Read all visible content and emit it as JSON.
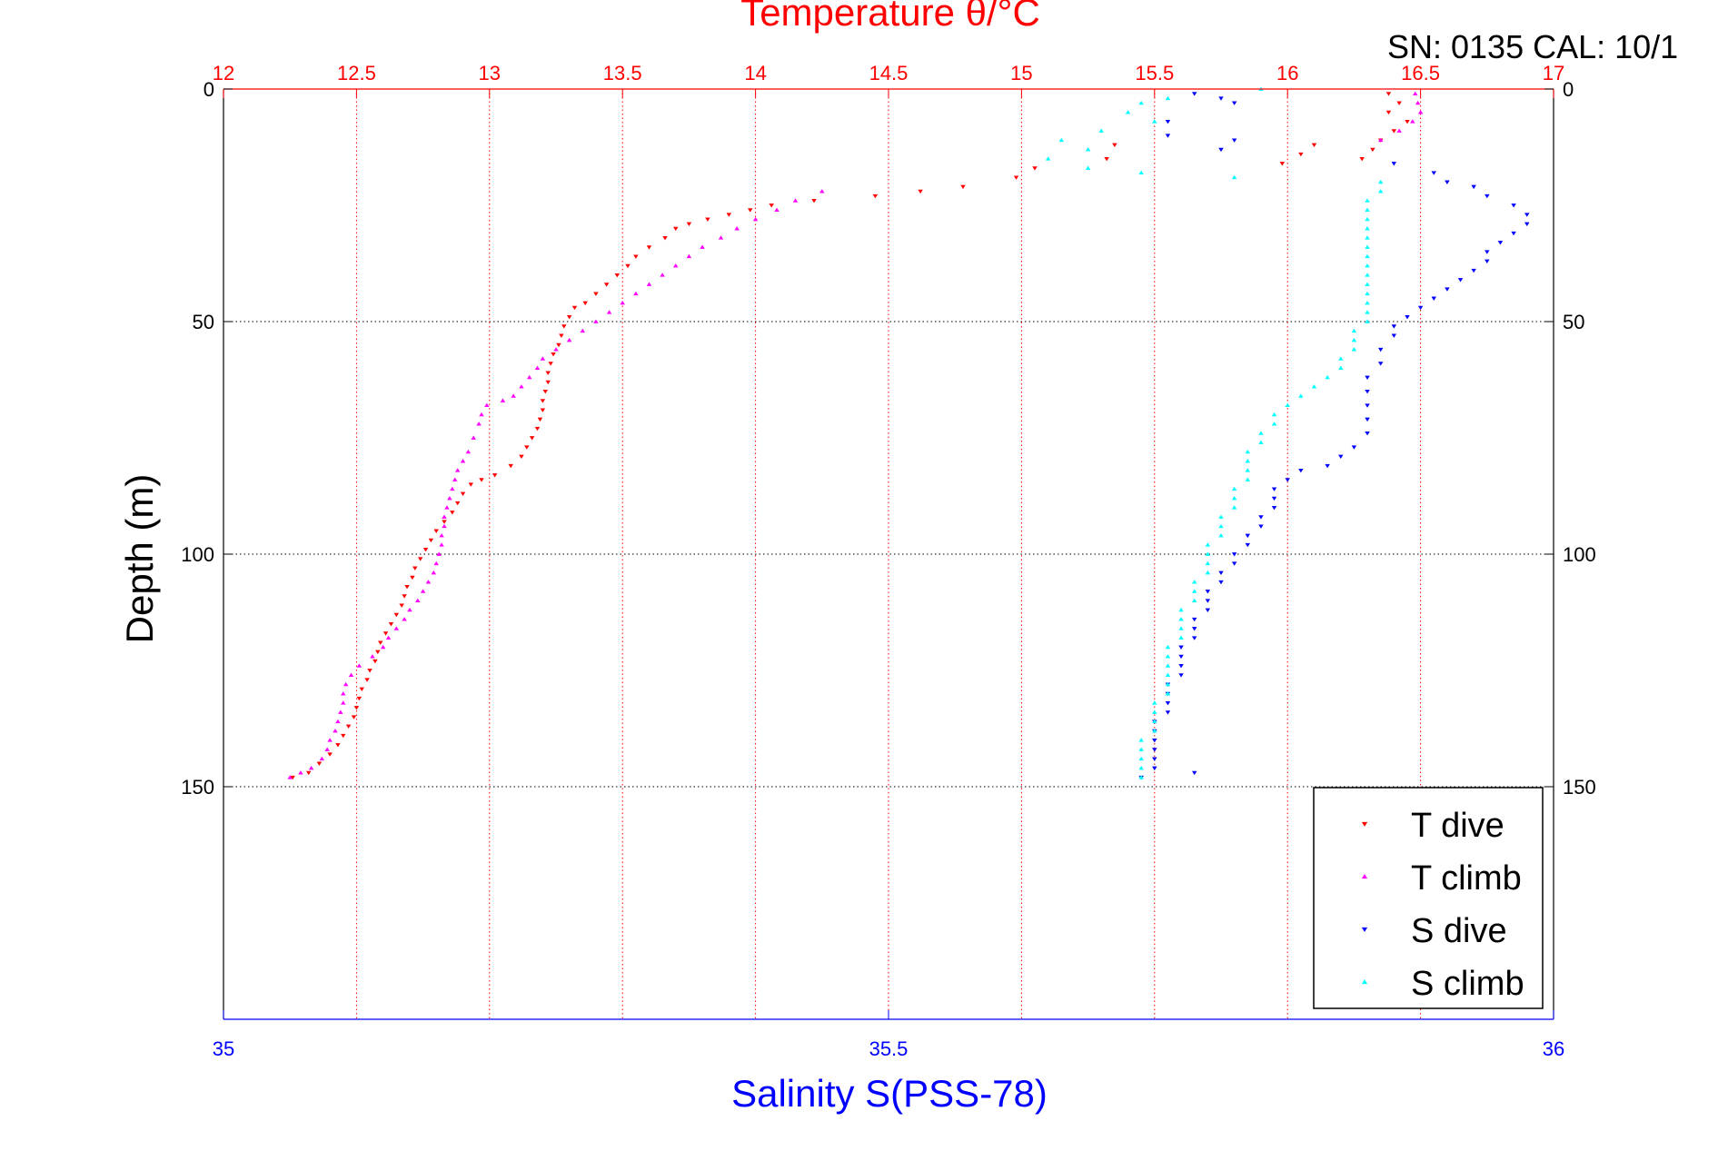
{
  "chart_data": {
    "type": "scatter",
    "title": "Temperature θ/°C",
    "serial_label": "SN: 0135  CAL: 10/1",
    "ylabel": "Depth (m)",
    "xlabel_bottom": "Salinity S(PSS-78)",
    "temperature_axis": {
      "range": [
        12,
        17
      ],
      "ticks": [
        12,
        12.5,
        13,
        13.5,
        14,
        14.5,
        15,
        15.5,
        16,
        16.5,
        17
      ],
      "tick_labels": [
        "12",
        "12.5",
        "13",
        "13.5",
        "14",
        "14.5",
        "15",
        "15.5",
        "16",
        "16.5",
        "17"
      ],
      "color": "#ff0000"
    },
    "salinity_axis": {
      "range": [
        35,
        36
      ],
      "ticks": [
        35,
        35.5,
        36
      ],
      "tick_labels": [
        "35",
        "35.5",
        "36"
      ],
      "color": "#0000ff"
    },
    "depth_axis": {
      "range": [
        0,
        200
      ],
      "reversed": true,
      "ticks": [
        0,
        50,
        100,
        150
      ],
      "tick_labels": [
        "0",
        "50",
        "100",
        "150"
      ]
    },
    "grid": true,
    "legend_position": "bottom-right",
    "series": [
      {
        "name": "T dive",
        "axis": "temperature",
        "marker": "triangle-down",
        "color": "#ff0000",
        "points": [
          [
            16.38,
            1
          ],
          [
            16.42,
            3
          ],
          [
            16.38,
            5
          ],
          [
            16.45,
            7
          ],
          [
            16.4,
            9
          ],
          [
            16.35,
            11
          ],
          [
            16.32,
            13
          ],
          [
            16.28,
            15
          ],
          [
            16.1,
            12
          ],
          [
            16.05,
            14
          ],
          [
            15.98,
            16
          ],
          [
            15.35,
            12
          ],
          [
            15.32,
            15
          ],
          [
            15.05,
            17
          ],
          [
            14.98,
            19
          ],
          [
            14.78,
            21
          ],
          [
            14.62,
            22
          ],
          [
            14.45,
            23
          ],
          [
            14.22,
            24
          ],
          [
            14.06,
            25
          ],
          [
            13.98,
            26
          ],
          [
            13.9,
            27
          ],
          [
            13.82,
            28
          ],
          [
            13.75,
            29
          ],
          [
            13.7,
            30
          ],
          [
            13.66,
            32
          ],
          [
            13.6,
            34
          ],
          [
            13.55,
            36
          ],
          [
            13.52,
            38
          ],
          [
            13.48,
            40
          ],
          [
            13.44,
            42
          ],
          [
            13.4,
            44
          ],
          [
            13.36,
            46
          ],
          [
            13.32,
            47
          ],
          [
            13.3,
            49
          ],
          [
            13.28,
            51
          ],
          [
            13.27,
            53
          ],
          [
            13.26,
            55
          ],
          [
            13.24,
            57
          ],
          [
            13.23,
            59
          ],
          [
            13.22,
            61
          ],
          [
            13.22,
            63
          ],
          [
            13.21,
            65
          ],
          [
            13.2,
            67
          ],
          [
            13.2,
            69
          ],
          [
            13.19,
            71
          ],
          [
            13.18,
            73
          ],
          [
            13.16,
            75
          ],
          [
            13.14,
            77
          ],
          [
            13.12,
            79
          ],
          [
            13.08,
            81
          ],
          [
            13.02,
            83
          ],
          [
            12.97,
            84
          ],
          [
            12.93,
            85
          ],
          [
            12.9,
            87
          ],
          [
            12.88,
            89
          ],
          [
            12.86,
            91
          ],
          [
            12.83,
            93
          ],
          [
            12.8,
            95
          ],
          [
            12.78,
            97
          ],
          [
            12.76,
            99
          ],
          [
            12.74,
            101
          ],
          [
            12.72,
            103
          ],
          [
            12.71,
            105
          ],
          [
            12.69,
            107
          ],
          [
            12.68,
            109
          ],
          [
            12.67,
            111
          ],
          [
            12.65,
            113
          ],
          [
            12.63,
            115
          ],
          [
            12.61,
            117
          ],
          [
            12.59,
            119
          ],
          [
            12.58,
            121
          ],
          [
            12.57,
            123
          ],
          [
            12.55,
            125
          ],
          [
            12.54,
            127
          ],
          [
            12.52,
            129
          ],
          [
            12.51,
            131
          ],
          [
            12.5,
            133
          ],
          [
            12.49,
            135
          ],
          [
            12.47,
            137
          ],
          [
            12.45,
            139
          ],
          [
            12.43,
            141
          ],
          [
            12.4,
            143
          ],
          [
            12.36,
            145
          ],
          [
            12.32,
            147
          ],
          [
            12.26,
            148
          ]
        ]
      },
      {
        "name": "T climb",
        "axis": "temperature",
        "marker": "triangle-up",
        "color": "#ff00ff",
        "points": [
          [
            12.25,
            148
          ],
          [
            12.29,
            147
          ],
          [
            12.33,
            146
          ],
          [
            12.37,
            144
          ],
          [
            12.39,
            142
          ],
          [
            12.4,
            140
          ],
          [
            12.42,
            138
          ],
          [
            12.43,
            136
          ],
          [
            12.44,
            134
          ],
          [
            12.45,
            132
          ],
          [
            12.45,
            130
          ],
          [
            12.46,
            128
          ],
          [
            12.48,
            126
          ],
          [
            12.51,
            124
          ],
          [
            12.56,
            122
          ],
          [
            12.6,
            120
          ],
          [
            12.62,
            118
          ],
          [
            12.65,
            116
          ],
          [
            12.68,
            114
          ],
          [
            12.7,
            112
          ],
          [
            12.73,
            110
          ],
          [
            12.75,
            108
          ],
          [
            12.77,
            106
          ],
          [
            12.79,
            104
          ],
          [
            12.8,
            102
          ],
          [
            12.81,
            100
          ],
          [
            12.82,
            98
          ],
          [
            12.82,
            96
          ],
          [
            12.83,
            94
          ],
          [
            12.83,
            92
          ],
          [
            12.84,
            90
          ],
          [
            12.85,
            88
          ],
          [
            12.86,
            86
          ],
          [
            12.87,
            84
          ],
          [
            12.88,
            82
          ],
          [
            12.9,
            80
          ],
          [
            12.92,
            78
          ],
          [
            12.94,
            75
          ],
          [
            12.96,
            72
          ],
          [
            12.97,
            70
          ],
          [
            12.99,
            68
          ],
          [
            13.05,
            67
          ],
          [
            13.09,
            66
          ],
          [
            13.12,
            64
          ],
          [
            13.15,
            62
          ],
          [
            13.18,
            60
          ],
          [
            13.2,
            58
          ],
          [
            13.25,
            56
          ],
          [
            13.3,
            54
          ],
          [
            13.35,
            52
          ],
          [
            13.4,
            50
          ],
          [
            13.45,
            48
          ],
          [
            13.5,
            46
          ],
          [
            13.55,
            44
          ],
          [
            13.6,
            42
          ],
          [
            13.65,
            40
          ],
          [
            13.7,
            38
          ],
          [
            13.75,
            36
          ],
          [
            13.8,
            34
          ],
          [
            13.87,
            32
          ],
          [
            13.93,
            30
          ],
          [
            14.0,
            28
          ],
          [
            14.08,
            26
          ],
          [
            14.15,
            24
          ],
          [
            14.25,
            22
          ],
          [
            16.48,
            1
          ],
          [
            16.49,
            3
          ],
          [
            16.5,
            5
          ],
          [
            16.47,
            7
          ],
          [
            16.42,
            9
          ],
          [
            16.35,
            11
          ]
        ]
      },
      {
        "name": "S dive",
        "axis": "salinity",
        "marker": "triangle-down",
        "color": "#0000ff",
        "points": [
          [
            35.73,
            1
          ],
          [
            35.75,
            2
          ],
          [
            35.76,
            3
          ],
          [
            35.71,
            7
          ],
          [
            35.71,
            10
          ],
          [
            35.76,
            11
          ],
          [
            35.75,
            13
          ],
          [
            35.88,
            16
          ],
          [
            35.91,
            18
          ],
          [
            35.92,
            20
          ],
          [
            35.94,
            21
          ],
          [
            35.95,
            23
          ],
          [
            35.97,
            25
          ],
          [
            35.98,
            27
          ],
          [
            35.98,
            29
          ],
          [
            35.97,
            31
          ],
          [
            35.96,
            33
          ],
          [
            35.95,
            35
          ],
          [
            35.95,
            37
          ],
          [
            35.94,
            39
          ],
          [
            35.93,
            41
          ],
          [
            35.92,
            43
          ],
          [
            35.91,
            45
          ],
          [
            35.9,
            47
          ],
          [
            35.89,
            49
          ],
          [
            35.88,
            51
          ],
          [
            35.88,
            53
          ],
          [
            35.87,
            56
          ],
          [
            35.87,
            59
          ],
          [
            35.86,
            62
          ],
          [
            35.86,
            65
          ],
          [
            35.86,
            68
          ],
          [
            35.86,
            71
          ],
          [
            35.86,
            74
          ],
          [
            35.85,
            77
          ],
          [
            35.84,
            79
          ],
          [
            35.83,
            81
          ],
          [
            35.81,
            82
          ],
          [
            35.8,
            84
          ],
          [
            35.79,
            86
          ],
          [
            35.79,
            88
          ],
          [
            35.79,
            90
          ],
          [
            35.78,
            92
          ],
          [
            35.78,
            94
          ],
          [
            35.77,
            96
          ],
          [
            35.77,
            98
          ],
          [
            35.76,
            100
          ],
          [
            35.76,
            102
          ],
          [
            35.75,
            104
          ],
          [
            35.75,
            106
          ],
          [
            35.74,
            108
          ],
          [
            35.74,
            110
          ],
          [
            35.74,
            112
          ],
          [
            35.73,
            114
          ],
          [
            35.73,
            116
          ],
          [
            35.73,
            118
          ],
          [
            35.72,
            120
          ],
          [
            35.72,
            122
          ],
          [
            35.72,
            124
          ],
          [
            35.72,
            126
          ],
          [
            35.71,
            128
          ],
          [
            35.71,
            130
          ],
          [
            35.71,
            132
          ],
          [
            35.71,
            134
          ],
          [
            35.7,
            136
          ],
          [
            35.7,
            138
          ],
          [
            35.7,
            140
          ],
          [
            35.7,
            142
          ],
          [
            35.7,
            144
          ],
          [
            35.7,
            146
          ],
          [
            35.73,
            147
          ],
          [
            35.69,
            148
          ]
        ]
      },
      {
        "name": "S climb",
        "axis": "salinity",
        "marker": "triangle-up",
        "color": "#00ffff",
        "points": [
          [
            35.78,
            0
          ],
          [
            35.71,
            2
          ],
          [
            35.69,
            3
          ],
          [
            35.68,
            5
          ],
          [
            35.7,
            7
          ],
          [
            35.66,
            9
          ],
          [
            35.63,
            11
          ],
          [
            35.65,
            13
          ],
          [
            35.62,
            15
          ],
          [
            35.65,
            17
          ],
          [
            35.69,
            18
          ],
          [
            35.76,
            19
          ],
          [
            35.87,
            20
          ],
          [
            35.87,
            22
          ],
          [
            35.86,
            24
          ],
          [
            35.86,
            26
          ],
          [
            35.86,
            28
          ],
          [
            35.86,
            30
          ],
          [
            35.86,
            32
          ],
          [
            35.86,
            34
          ],
          [
            35.86,
            36
          ],
          [
            35.86,
            38
          ],
          [
            35.86,
            40
          ],
          [
            35.86,
            42
          ],
          [
            35.86,
            44
          ],
          [
            35.86,
            46
          ],
          [
            35.86,
            48
          ],
          [
            35.86,
            50
          ],
          [
            35.85,
            52
          ],
          [
            35.85,
            54
          ],
          [
            35.85,
            56
          ],
          [
            35.84,
            58
          ],
          [
            35.84,
            60
          ],
          [
            35.83,
            62
          ],
          [
            35.82,
            64
          ],
          [
            35.81,
            66
          ],
          [
            35.8,
            68
          ],
          [
            35.79,
            70
          ],
          [
            35.79,
            72
          ],
          [
            35.78,
            74
          ],
          [
            35.78,
            76
          ],
          [
            35.77,
            78
          ],
          [
            35.77,
            80
          ],
          [
            35.77,
            82
          ],
          [
            35.77,
            84
          ],
          [
            35.76,
            86
          ],
          [
            35.76,
            88
          ],
          [
            35.76,
            90
          ],
          [
            35.75,
            92
          ],
          [
            35.75,
            94
          ],
          [
            35.75,
            96
          ],
          [
            35.74,
            98
          ],
          [
            35.74,
            100
          ],
          [
            35.74,
            102
          ],
          [
            35.74,
            104
          ],
          [
            35.73,
            106
          ],
          [
            35.73,
            108
          ],
          [
            35.73,
            110
          ],
          [
            35.72,
            112
          ],
          [
            35.72,
            114
          ],
          [
            35.72,
            116
          ],
          [
            35.72,
            118
          ],
          [
            35.71,
            120
          ],
          [
            35.71,
            122
          ],
          [
            35.71,
            124
          ],
          [
            35.71,
            126
          ],
          [
            35.71,
            128
          ],
          [
            35.71,
            130
          ],
          [
            35.7,
            132
          ],
          [
            35.7,
            134
          ],
          [
            35.7,
            136
          ],
          [
            35.7,
            138
          ],
          [
            35.69,
            140
          ],
          [
            35.69,
            142
          ],
          [
            35.69,
            144
          ],
          [
            35.69,
            146
          ],
          [
            35.69,
            148
          ]
        ]
      }
    ]
  }
}
